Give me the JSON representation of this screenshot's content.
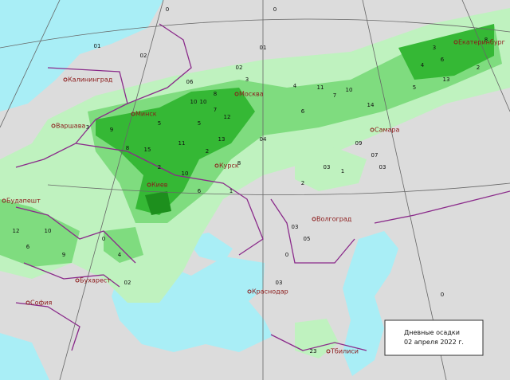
{
  "legend": {
    "title": "Дневные осадки",
    "date": "02 апреля 2022 г."
  },
  "cities": [
    "Калининград",
    "Минск",
    "Варшава",
    "Москва",
    "Киев",
    "Курск",
    "Самара",
    "Екатеринбург",
    "Будапешт",
    "Бухарест",
    "София",
    "Волгоград",
    "Краснодар",
    "Тбилиси"
  ],
  "stations": [
    "01",
    "0",
    "0",
    "01",
    "02",
    "06",
    "10",
    "10",
    "8",
    "12",
    "3",
    "9",
    "13",
    "15",
    "11",
    "10",
    "5",
    "2",
    "8",
    "6",
    "4",
    "7",
    "10",
    "11",
    "14",
    "13",
    "4",
    "6",
    "5",
    "2",
    "3",
    "8",
    "12",
    "10",
    "9",
    "6",
    "02",
    "04",
    "03",
    "09",
    "07",
    "1",
    "2",
    "05",
    "03",
    "0",
    "03",
    "02",
    "0",
    "23",
    "4",
    "2",
    "1",
    "6",
    "3",
    "5",
    "8",
    "7",
    "03",
    "0"
  ]
}
